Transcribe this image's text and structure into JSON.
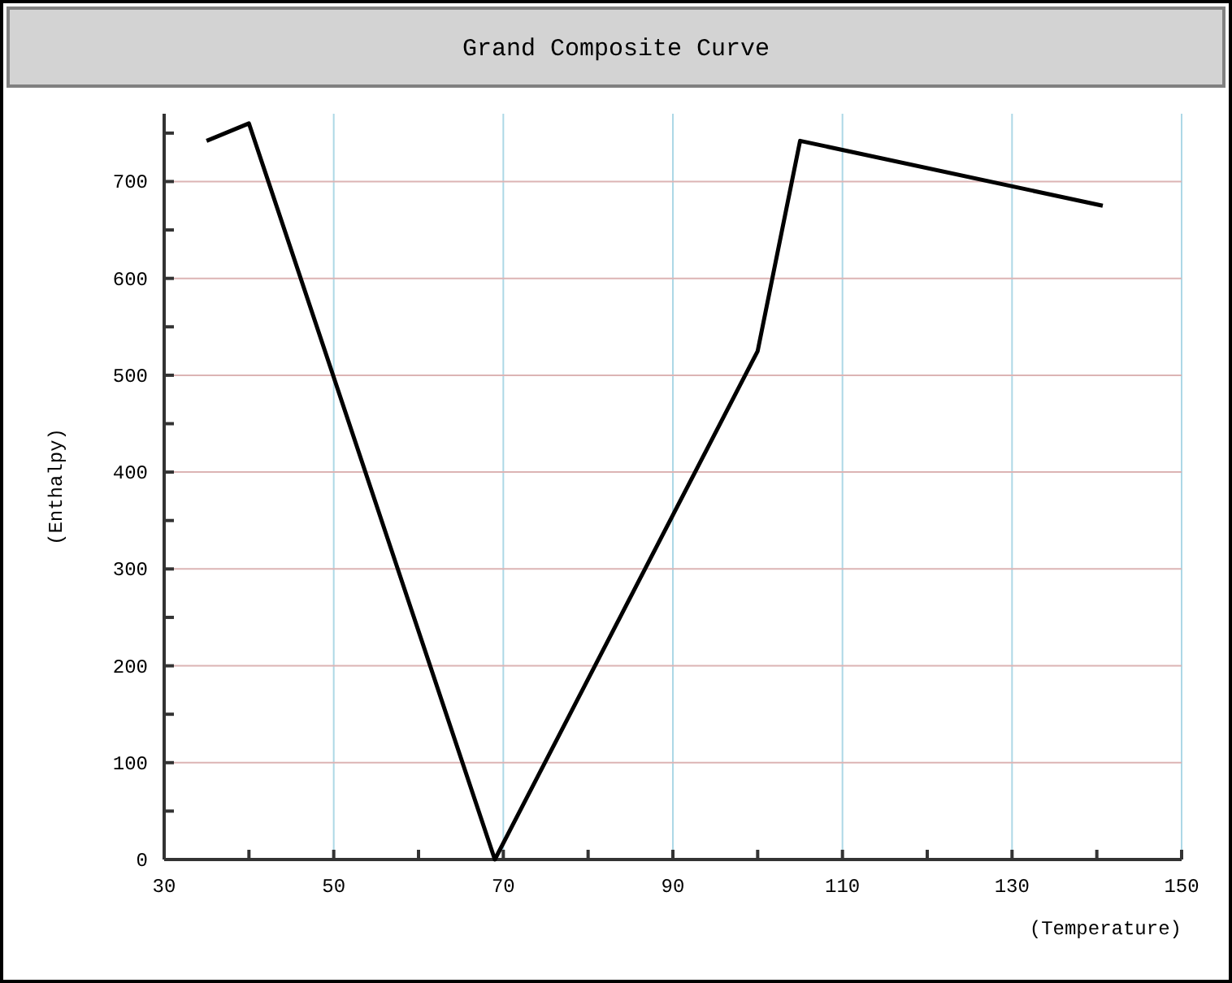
{
  "chart_data": {
    "type": "line",
    "title": "Grand Composite Curve",
    "xlabel": "(Temperature)",
    "ylabel": "(Enthalpy)",
    "series": [
      {
        "color": "#000000",
        "x": [
          35,
          40,
          69,
          100,
          105,
          140.7
        ],
        "values": [
          742,
          760,
          0,
          525,
          742,
          675
        ]
      }
    ],
    "xlim": [
      30,
      150
    ],
    "xticks": [
      30,
      {
        "value": 40,
        "label": null
      },
      50,
      {
        "value": 60,
        "label": null
      },
      70,
      {
        "value": 80,
        "label": null
      },
      90,
      {
        "value": 100,
        "label": null
      },
      110,
      {
        "value": 120,
        "label": null
      },
      130,
      {
        "value": 140,
        "label": null
      },
      150
    ],
    "ylim": [
      0,
      770
    ],
    "yticks": [
      0,
      {
        "value": 50,
        "label": null
      },
      100,
      {
        "value": 150,
        "label": null
      },
      200,
      {
        "value": 250,
        "label": null
      },
      300,
      {
        "value": 350,
        "label": null
      },
      400,
      {
        "value": 450,
        "label": null
      },
      500,
      {
        "value": 550,
        "label": null
      },
      600,
      {
        "value": 650,
        "label": null
      },
      700,
      {
        "value": 750,
        "label": null
      }
    ],
    "grid": true,
    "marker": "none",
    "line_style": "solid"
  }
}
